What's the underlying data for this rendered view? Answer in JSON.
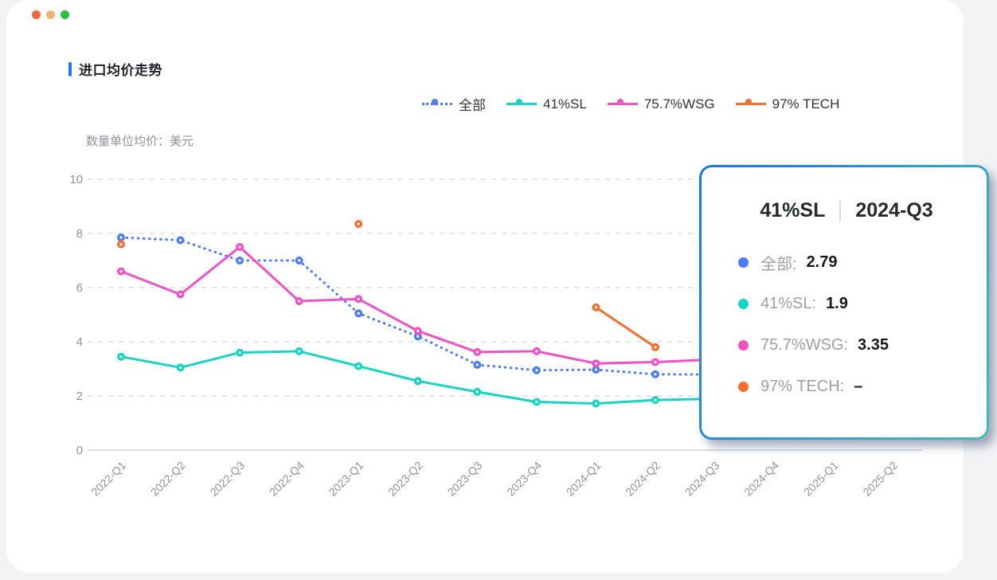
{
  "window": {
    "dots": [
      {
        "name": "close-dot",
        "color": "#ef6a3c"
      },
      {
        "name": "minimize-dot",
        "color": "#f5b277"
      },
      {
        "name": "zoom-dot",
        "color": "#26c33e"
      }
    ]
  },
  "header": {
    "title": "进口均价走势",
    "accent_color": "#2273f0"
  },
  "unit_label": "数量单位均价：美元",
  "legend": {
    "items": [
      {
        "label": "全部",
        "color": "#4c7df0",
        "line_style": "dotted"
      },
      {
        "label": "41%SL",
        "color": "#16d5c3",
        "line_style": "solid"
      },
      {
        "label": "75.7%WSG",
        "color": "#ee52c5",
        "line_style": "solid"
      },
      {
        "label": "97% TECH",
        "color": "#f4702e",
        "line_style": "solid"
      }
    ]
  },
  "chart_data": {
    "type": "line",
    "title": "进口均价走势",
    "ylabel": "数量单位均价：美元",
    "ylim": [
      0,
      10
    ],
    "yticks": [
      0,
      2,
      4,
      6,
      8,
      10
    ],
    "grid": "horizontal-dashed",
    "legend_position": "top",
    "categories": [
      "2022-Q1",
      "2022-Q2",
      "2022-Q3",
      "2022-Q4",
      "2023-Q1",
      "2023-Q2",
      "2023-Q3",
      "2023-Q4",
      "2024-Q1",
      "2024-Q2",
      "2024-Q3",
      "2024-Q4",
      "2025-Q1",
      "2025-Q2"
    ],
    "series": [
      {
        "name": "全部",
        "color": "#4c7df0",
        "style": "dotted",
        "values": [
          7.85,
          7.75,
          7.0,
          7.0,
          5.05,
          4.2,
          3.15,
          2.95,
          2.97,
          2.8,
          2.79,
          null,
          null,
          null
        ]
      },
      {
        "name": "41%SL",
        "color": "#16d5c3",
        "style": "solid",
        "values": [
          3.45,
          3.05,
          3.6,
          3.65,
          3.1,
          2.55,
          2.15,
          1.78,
          1.72,
          1.85,
          1.9,
          null,
          null,
          null
        ]
      },
      {
        "name": "75.7%WSG",
        "color": "#ee52c5",
        "style": "solid",
        "values": [
          6.6,
          5.75,
          7.5,
          5.5,
          5.58,
          4.4,
          3.62,
          3.65,
          3.2,
          3.25,
          3.35,
          null,
          null,
          null
        ]
      },
      {
        "name": "97% TECH",
        "color": "#f4702e",
        "style": "solid",
        "values": [
          7.6,
          null,
          null,
          null,
          8.35,
          null,
          null,
          null,
          5.27,
          3.8,
          null,
          null,
          null,
          null
        ]
      }
    ]
  },
  "tooltip": {
    "series_name": "41%SL",
    "period": "2024-Q3",
    "rows": [
      {
        "label": "全部",
        "value": "2.79",
        "color": "#4c7df0"
      },
      {
        "label": "41%SL",
        "value": "1.9",
        "color": "#16d5c3"
      },
      {
        "label": "75.7%WSG",
        "value": "3.35",
        "color": "#ee52c5"
      },
      {
        "label": "97% TECH",
        "value": "–",
        "color": "#f4702e"
      }
    ]
  }
}
